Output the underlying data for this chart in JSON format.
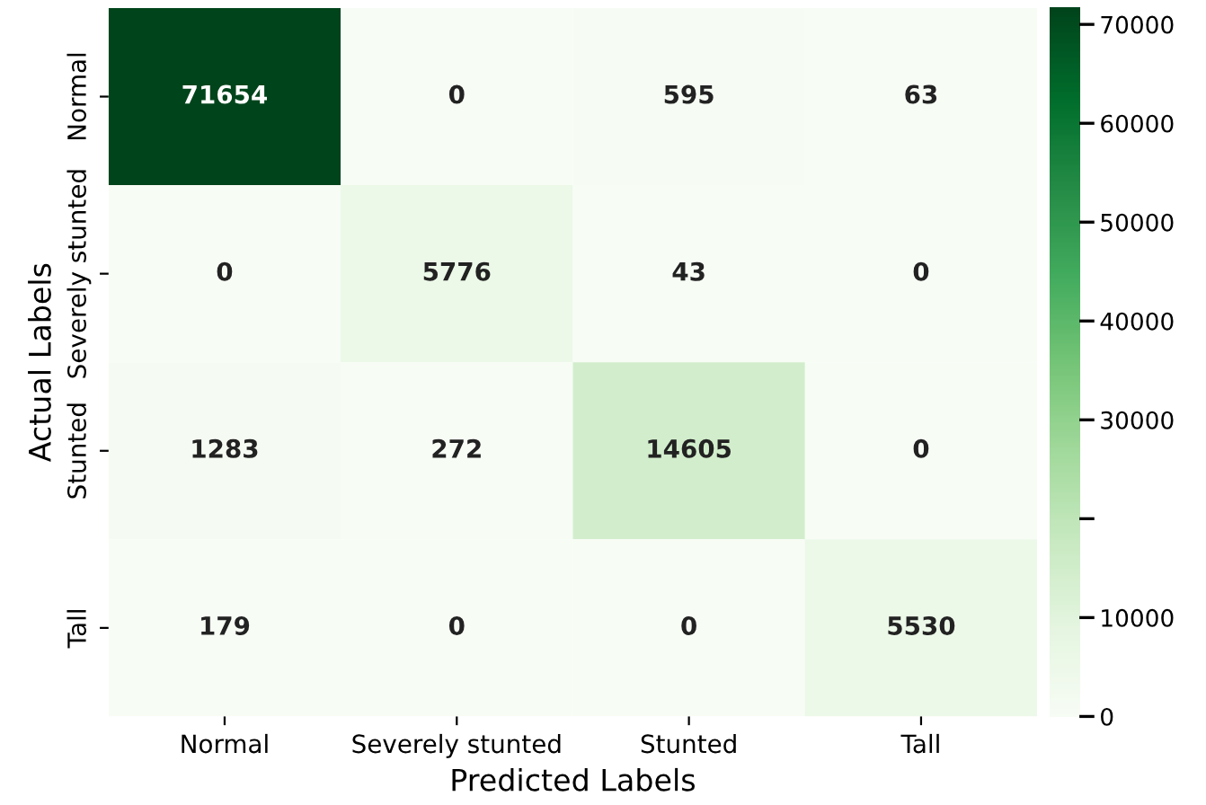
{
  "chart_data": {
    "type": "heatmap",
    "xlabel": "Predicted Labels",
    "ylabel": "Actual Labels",
    "categories": [
      "Normal",
      "Severely stunted",
      "Stunted",
      "Tall"
    ],
    "y_categories": [
      "Normal",
      "Severely stunted",
      "Stunted",
      "Tall"
    ],
    "cells": [
      [
        71654,
        0,
        595,
        63
      ],
      [
        0,
        5776,
        43,
        0
      ],
      [
        1283,
        272,
        14605,
        0
      ],
      [
        179,
        0,
        0,
        5530
      ]
    ],
    "clim": [
      0,
      71654
    ],
    "cticks": [
      0,
      10000,
      {
        "value": 20000,
        "label": null
      },
      30000,
      40000,
      50000,
      60000,
      70000
    ],
    "data_labels": true
  }
}
